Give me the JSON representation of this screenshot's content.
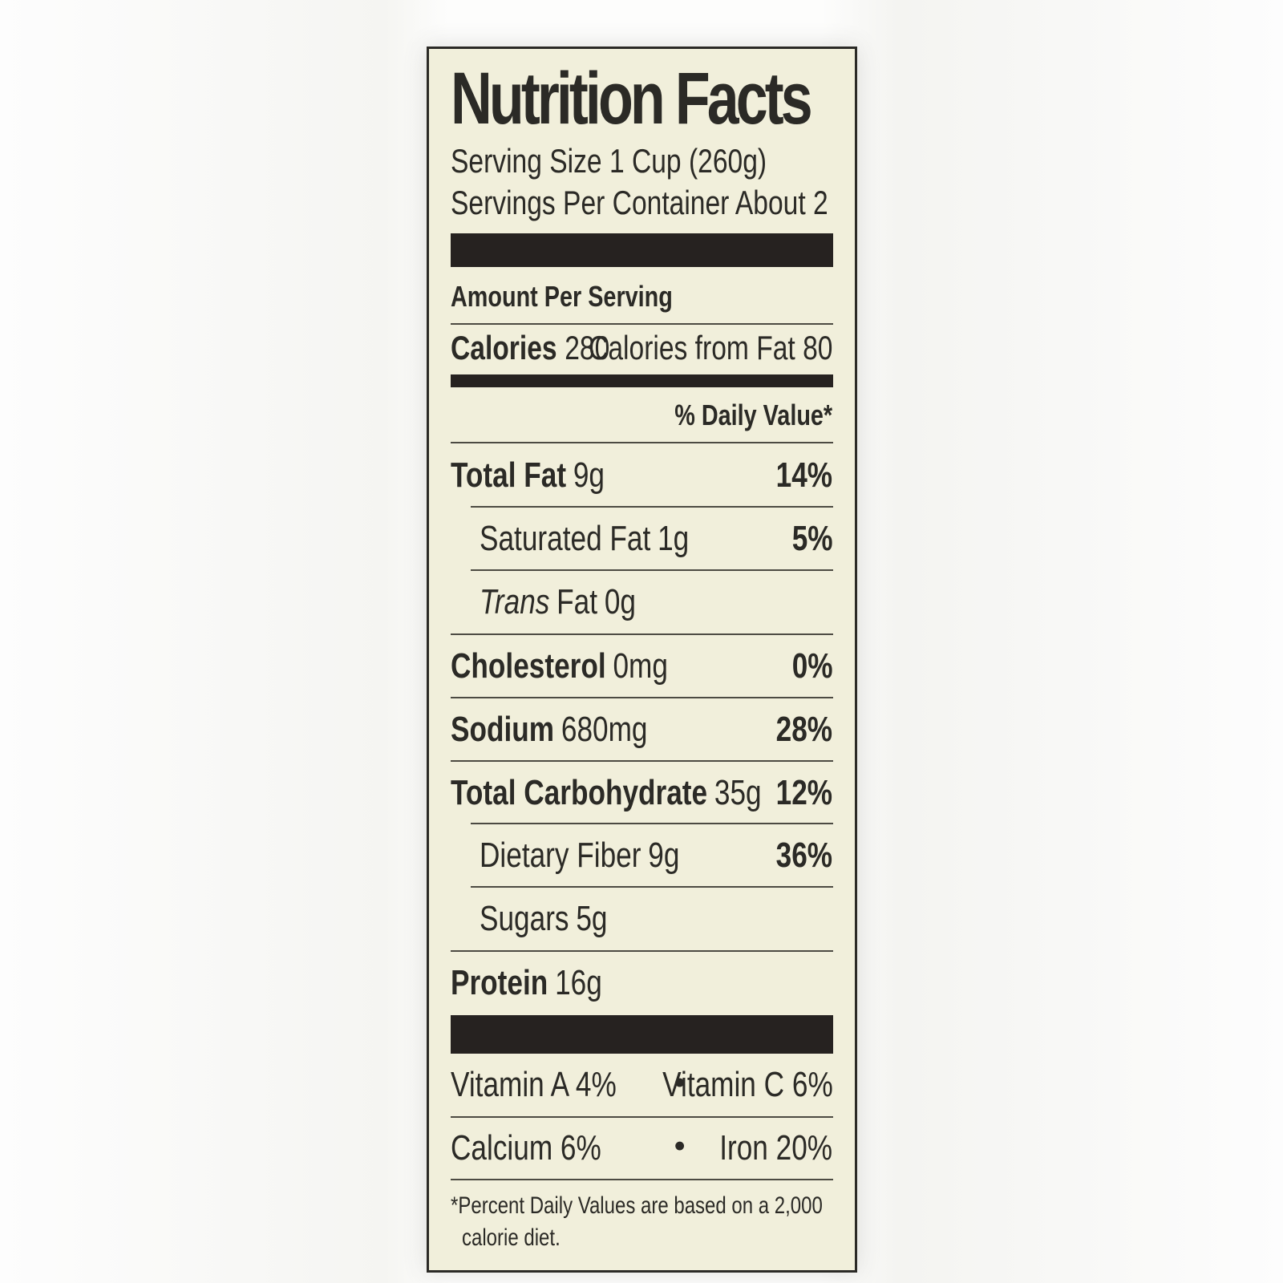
{
  "label": {
    "title": "Nutrition Facts",
    "serving": {
      "size": "Serving Size 1 Cup (260g)",
      "per_container": "Servings Per Container About 2"
    },
    "amount_per_serving": "Amount Per Serving",
    "calories": {
      "label": "Calories",
      "value": "280",
      "from_fat": "Calories from Fat 80"
    },
    "daily_value_header": "% Daily Value*",
    "nutrients": [
      {
        "name": "Total Fat",
        "amount": "9g",
        "dv": "14%"
      },
      {
        "name": "Saturated Fat",
        "amount": "1g",
        "dv": "5%"
      },
      {
        "name_italic": "Trans",
        "name": "Fat",
        "amount": "0g",
        "dv": ""
      },
      {
        "name": "Cholesterol",
        "amount": "0mg",
        "dv": "0%"
      },
      {
        "name": "Sodium",
        "amount": "680mg",
        "dv": "28%"
      },
      {
        "name": "Total Carbohydrate",
        "amount": "35g",
        "dv": "12%"
      },
      {
        "name": "Dietary Fiber",
        "amount": "9g",
        "dv": "36%"
      },
      {
        "name": "Sugars",
        "amount": "5g",
        "dv": ""
      },
      {
        "name": "Protein",
        "amount": "16g",
        "dv": ""
      }
    ],
    "vitamins": [
      {
        "left": "Vitamin A 4%",
        "separator": "•",
        "right": "Vitamin C 6%"
      },
      {
        "left": "Calcium 6%",
        "separator": "•",
        "right": "Iron 20%"
      }
    ],
    "footnote_lines": [
      "*Percent Daily Values are based on a 2,000",
      "calorie diet."
    ],
    "colors": {
      "background": "#ffffff",
      "label_background": "#f1efdb",
      "text": "#2b2a26",
      "bar": "#262220"
    }
  }
}
